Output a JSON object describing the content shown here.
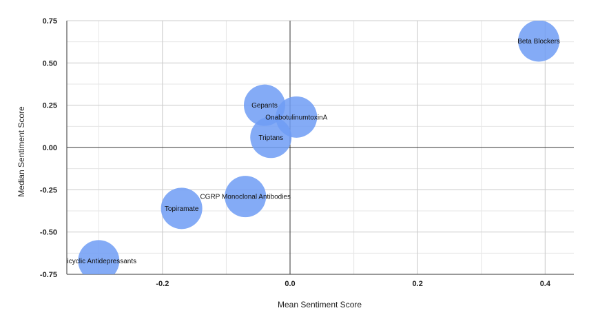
{
  "chart_data": {
    "type": "scatter",
    "subtype": "bubble",
    "xlabel": "Mean Sentiment Score",
    "ylabel": "Median Sentiment Score",
    "xlim": [
      -0.35,
      0.445
    ],
    "ylim": [
      -0.75,
      0.75
    ],
    "x_ticks": [
      -0.2,
      0,
      0.2,
      0.4
    ],
    "x_tick_labels": [
      "-0.2",
      "0.0",
      "0.2",
      "0.4"
    ],
    "y_ticks": [
      0.75,
      0.5,
      0.25,
      0,
      -0.25,
      -0.5,
      -0.75
    ],
    "y_tick_labels": [
      "0.75",
      "0.50",
      "0.25",
      "0.00",
      "-0.25",
      "-0.50",
      "-0.75"
    ],
    "grid": true,
    "bubble_color": "#6f9cf4",
    "points": [
      {
        "label": "Beta Blockers",
        "x": 0.39,
        "y": 0.63
      },
      {
        "label": "Gepants",
        "x": -0.04,
        "y": 0.25
      },
      {
        "label": "OnabotulinumtoxinA",
        "x": 0.01,
        "y": 0.18
      },
      {
        "label": "Triptans",
        "x": -0.03,
        "y": 0.06
      },
      {
        "label": "CGRP Monoclonal Antibodies",
        "x": -0.07,
        "y": -0.29
      },
      {
        "label": "Topiramate",
        "x": -0.17,
        "y": -0.36
      },
      {
        "label": "Tricyclic Antidepressants",
        "x": -0.3,
        "y": -0.67
      }
    ]
  }
}
